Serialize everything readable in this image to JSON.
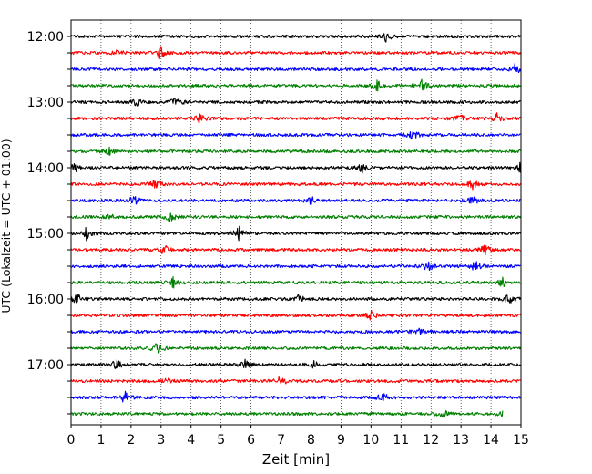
{
  "chart_data": {
    "type": "line",
    "title": "",
    "xlabel": "Zeit  [min]",
    "ylabel": "UTC (Lokalzeit = UTC + 01:00)",
    "xlim": [
      0,
      15
    ],
    "x_ticks": [
      "0",
      "1",
      "2",
      "3",
      "4",
      "5",
      "6",
      "7",
      "8",
      "9",
      "10",
      "11",
      "12",
      "13",
      "14",
      "15"
    ],
    "y_ticks": [
      "12:00",
      "13:00",
      "14:00",
      "15:00",
      "16:00",
      "17:00"
    ],
    "grid": "vertical dotted",
    "color_cycle": [
      "#000000",
      "#ff0000",
      "#0000ff",
      "#008000"
    ],
    "traces": [
      {
        "start": "12:00",
        "end_min": 15
      },
      {
        "start": "12:15",
        "end_min": 15
      },
      {
        "start": "12:30",
        "end_min": 15
      },
      {
        "start": "12:45",
        "end_min": 15
      },
      {
        "start": "13:00",
        "end_min": 15
      },
      {
        "start": "13:15",
        "end_min": 15
      },
      {
        "start": "13:30",
        "end_min": 15
      },
      {
        "start": "13:45",
        "end_min": 15
      },
      {
        "start": "14:00",
        "end_min": 15
      },
      {
        "start": "14:15",
        "end_min": 15
      },
      {
        "start": "14:30",
        "end_min": 15
      },
      {
        "start": "14:45",
        "end_min": 15
      },
      {
        "start": "15:00",
        "end_min": 15
      },
      {
        "start": "15:15",
        "end_min": 15
      },
      {
        "start": "15:30",
        "end_min": 15
      },
      {
        "start": "15:45",
        "end_min": 15
      },
      {
        "start": "16:00",
        "end_min": 15
      },
      {
        "start": "16:15",
        "end_min": 15
      },
      {
        "start": "16:30",
        "end_min": 15
      },
      {
        "start": "16:45",
        "end_min": 15
      },
      {
        "start": "17:00",
        "end_min": 15
      },
      {
        "start": "17:15",
        "end_min": 15
      },
      {
        "start": "17:30",
        "end_min": 15
      },
      {
        "start": "17:45",
        "end_min": 14.4
      }
    ],
    "events": [
      [
        [
          10.5,
          1.0
        ]
      ],
      [
        [
          3.0,
          1.2
        ],
        [
          1.6,
          0.6
        ]
      ],
      [
        [
          14.8,
          1.0
        ]
      ],
      [
        [
          10.2,
          1.0
        ],
        [
          11.7,
          1.3
        ]
      ],
      [
        [
          3.5,
          1.0
        ],
        [
          2.2,
          0.6
        ]
      ],
      [
        [
          4.3,
          0.8
        ],
        [
          13.0,
          0.8
        ],
        [
          14.2,
          0.8
        ]
      ],
      [
        [
          11.4,
          1.0
        ]
      ],
      [
        [
          1.3,
          0.7
        ]
      ],
      [
        [
          0.1,
          1.2
        ],
        [
          9.7,
          0.9
        ],
        [
          15.0,
          1.0
        ]
      ],
      [
        [
          2.8,
          1.0
        ],
        [
          13.4,
          0.8
        ]
      ],
      [
        [
          2.1,
          1.0
        ],
        [
          8.0,
          0.7
        ],
        [
          13.4,
          0.8
        ]
      ],
      [
        [
          3.3,
          1.2
        ],
        [
          1.3,
          0.5
        ]
      ],
      [
        [
          0.5,
          1.2
        ],
        [
          5.6,
          1.3
        ]
      ],
      [
        [
          3.1,
          0.9
        ],
        [
          13.8,
          1.0
        ]
      ],
      [
        [
          11.9,
          1.0
        ],
        [
          13.5,
          1.2
        ]
      ],
      [
        [
          3.4,
          1.0
        ],
        [
          14.4,
          0.8
        ]
      ],
      [
        [
          0.2,
          0.9
        ],
        [
          7.6,
          0.7
        ],
        [
          14.6,
          1.1
        ]
      ],
      [
        [
          10.0,
          0.9
        ]
      ],
      [
        [
          11.6,
          0.6
        ]
      ],
      [
        [
          2.9,
          1.2
        ]
      ],
      [
        [
          1.5,
          1.0
        ],
        [
          5.8,
          0.8
        ],
        [
          8.1,
          0.7
        ]
      ],
      [
        [
          7.0,
          1.1
        ],
        [
          3.2,
          0.6
        ]
      ],
      [
        [
          1.8,
          1.1
        ],
        [
          10.4,
          0.9
        ]
      ],
      [
        [
          12.4,
          0.8
        ],
        [
          14.4,
          0.6
        ]
      ]
    ]
  }
}
